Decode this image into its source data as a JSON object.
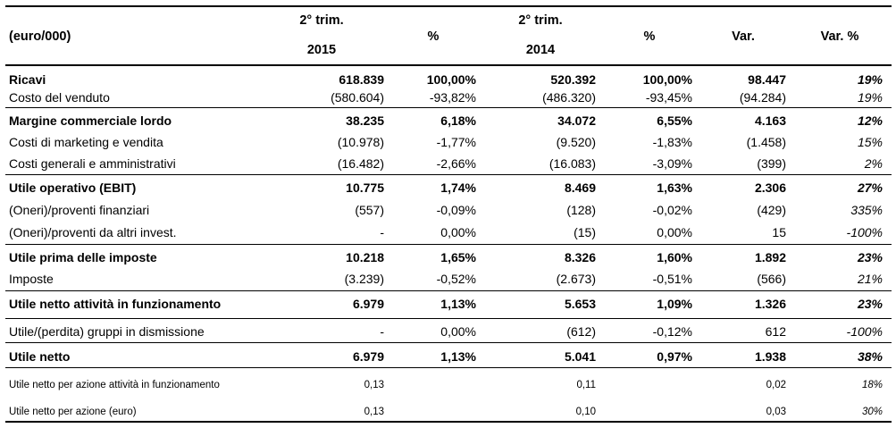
{
  "header": {
    "unit": "(euro/000)",
    "q2015_line1": "2° trim.",
    "q2015_line2": "2015",
    "pct1": "%",
    "q2014_line1": "2° trim.",
    "q2014_line2": "2014",
    "pct2": "%",
    "var": "Var.",
    "var_pct": "Var. %"
  },
  "rows": [
    {
      "label": "Ricavi",
      "v2015": "618.839",
      "p2015": "100,00%",
      "v2014": "520.392",
      "p2014": "100,00%",
      "var": "98.447",
      "varp": "19%"
    },
    {
      "label": "Costo del venduto",
      "v2015": "(580.604)",
      "p2015": "-93,82%",
      "v2014": "(486.320)",
      "p2014": "-93,45%",
      "var": "(94.284)",
      "varp": "19%"
    },
    {
      "label": "Margine commerciale lordo",
      "v2015": "38.235",
      "p2015": "6,18%",
      "v2014": "34.072",
      "p2014": "6,55%",
      "var": "4.163",
      "varp": "12%"
    },
    {
      "label": "Costi di marketing e vendita",
      "v2015": "(10.978)",
      "p2015": "-1,77%",
      "v2014": "(9.520)",
      "p2014": "-1,83%",
      "var": "(1.458)",
      "varp": "15%"
    },
    {
      "label": "Costi generali e amministrativi",
      "v2015": "(16.482)",
      "p2015": "-2,66%",
      "v2014": "(16.083)",
      "p2014": "-3,09%",
      "var": "(399)",
      "varp": "2%"
    },
    {
      "label": "Utile operativo (EBIT)",
      "v2015": "10.775",
      "p2015": "1,74%",
      "v2014": "8.469",
      "p2014": "1,63%",
      "var": "2.306",
      "varp": "27%"
    },
    {
      "label": "(Oneri)/proventi finanziari",
      "v2015": "(557)",
      "p2015": "-0,09%",
      "v2014": "(128)",
      "p2014": "-0,02%",
      "var": "(429)",
      "varp": "335%"
    },
    {
      "label": "(Oneri)/proventi da altri invest.",
      "v2015": "-",
      "p2015": "0,00%",
      "v2014": "(15)",
      "p2014": "0,00%",
      "var": "15",
      "varp": "-100%"
    },
    {
      "label": "Utile prima delle imposte",
      "v2015": "10.218",
      "p2015": "1,65%",
      "v2014": "8.326",
      "p2014": "1,60%",
      "var": "1.892",
      "varp": "23%"
    },
    {
      "label": "Imposte",
      "v2015": "(3.239)",
      "p2015": "-0,52%",
      "v2014": "(2.673)",
      "p2014": "-0,51%",
      "var": "(566)",
      "varp": "21%"
    },
    {
      "label": "Utile netto attività in funzionamento",
      "v2015": "6.979",
      "p2015": "1,13%",
      "v2014": "5.653",
      "p2014": "1,09%",
      "var": "1.326",
      "varp": "23%"
    },
    {
      "label": "Utile/(perdita) gruppi in dismissione",
      "v2015": "-",
      "p2015": "0,00%",
      "v2014": "(612)",
      "p2014": "-0,12%",
      "var": "612",
      "varp": "-100%"
    },
    {
      "label": "Utile netto",
      "v2015": "6.979",
      "p2015": "1,13%",
      "v2014": "5.041",
      "p2014": "0,97%",
      "var": "1.938",
      "varp": "38%"
    },
    {
      "label": "Utile netto per azione attività in funzionamento",
      "v2015": "0,13",
      "p2015": "",
      "v2014": "0,11",
      "p2014": "",
      "var": "0,02",
      "varp": "18%"
    },
    {
      "label": "Utile netto per azione (euro)",
      "v2015": "0,13",
      "p2015": "",
      "v2014": "0,10",
      "p2014": "",
      "var": "0,03",
      "varp": "30%"
    }
  ]
}
